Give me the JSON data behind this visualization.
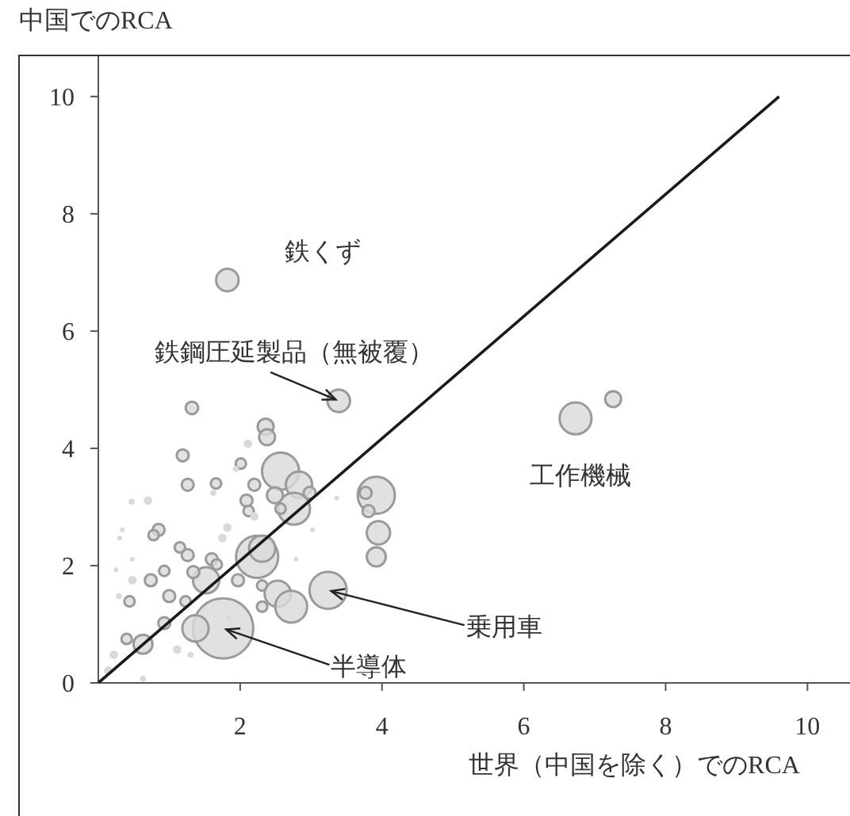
{
  "chart_data": {
    "type": "bubble",
    "xlabel": "世界（中国を除く）でのRCA",
    "ylabel": "中国でのRCA",
    "xlim": [
      0,
      10.6
    ],
    "ylim": [
      0,
      10.7
    ],
    "xticks": [
      2,
      4,
      6,
      8,
      10
    ],
    "yticks": [
      0,
      2,
      4,
      6,
      8,
      10
    ],
    "series": [
      {
        "color": "#d9d9d9",
        "marker": "circle",
        "x": [
          1.76,
          3.24,
          3.39,
          1.82,
          6.73,
          7.26,
          1.32,
          2.36,
          2.38,
          2.11,
          2.01,
          1.94,
          1.19,
          1.26,
          1.66,
          1.62,
          2.2,
          2.57,
          2.83,
          2.76,
          2.98,
          2.49,
          2.09,
          2.12,
          2.2,
          2.57,
          3.92,
          3.77,
          3.81,
          3.95,
          3.92,
          3.36,
          2.24,
          2.31,
          1.97,
          2.31,
          2.53,
          2.72,
          2.31,
          1.52,
          1.37,
          1.6,
          1.34,
          1.26,
          1.15,
          0.85,
          0.78,
          0.93,
          0.74,
          0.48,
          0.44,
          0.29,
          0.7,
          0.47,
          1.0,
          1.23,
          1.67,
          1.75,
          1.82,
          0.63,
          0.93,
          0.4,
          0.22,
          0.14,
          0.63,
          1.11,
          1.3,
          0.34,
          0.3,
          0.48,
          0.25,
          1.84,
          3.02,
          2.79
        ],
        "values": [
          0.93,
          1.58,
          4.81,
          6.87,
          4.51,
          4.84,
          4.69,
          4.37,
          4.19,
          4.08,
          3.74,
          3.65,
          3.88,
          3.38,
          3.4,
          3.24,
          3.38,
          3.61,
          3.38,
          2.97,
          3.24,
          3.2,
          3.11,
          2.93,
          2.84,
          2.97,
          3.2,
          3.24,
          2.93,
          2.56,
          2.15,
          3.15,
          2.15,
          2.29,
          1.75,
          1.66,
          1.52,
          1.3,
          1.3,
          1.75,
          0.93,
          2.11,
          1.89,
          2.18,
          2.31,
          2.61,
          2.52,
          1.91,
          1.75,
          1.75,
          1.39,
          1.48,
          3.11,
          3.09,
          1.48,
          1.39,
          2.02,
          2.47,
          2.65,
          0.66,
          1.02,
          0.75,
          0.48,
          0.21,
          0.07,
          0.57,
          0.48,
          2.61,
          2.47,
          2.11,
          1.93,
          1.11,
          2.61,
          2.11
        ],
        "sizes": [
          1,
          0.38,
          0.14,
          0.14,
          0.28,
          0.07,
          0.044,
          0.07,
          0.07,
          0.02,
          0.03,
          0.01,
          0.04,
          0.04,
          0.03,
          0.01,
          0.04,
          0.38,
          0.19,
          0.28,
          0.04,
          0.07,
          0.04,
          0.03,
          0.02,
          0.03,
          0.38,
          0.04,
          0.04,
          0.15,
          0.1,
          0.004,
          0.49,
          0.19,
          0.04,
          0.03,
          0.19,
          0.28,
          0.03,
          0.19,
          0.19,
          0.04,
          0.04,
          0.04,
          0.03,
          0.04,
          0.03,
          0.03,
          0.04,
          0.02,
          0.03,
          0.01,
          0.02,
          0.01,
          0.04,
          0.03,
          0.03,
          0.02,
          0.02,
          0.1,
          0.04,
          0.03,
          0.02,
          0.02,
          0.01,
          0.02,
          0.01,
          0.003,
          0.003,
          0.003,
          0.003,
          0.005,
          0.005,
          0.005
        ]
      },
      {
        "type": "line",
        "color": "#1a1a1a",
        "x": [
          0,
          9.6
        ],
        "values": [
          0,
          10
        ]
      }
    ],
    "annotations": [
      {
        "text": "鉄くず",
        "x": 1.82,
        "y": 6.87
      },
      {
        "text": "鉄鋼圧延製品（無被覆）",
        "x": 3.39,
        "y": 4.81
      },
      {
        "text": "工作機械",
        "x": 6.73,
        "y": 4.51
      },
      {
        "text": "乗用車",
        "x": 3.24,
        "y": 1.58
      },
      {
        "text": "半導体",
        "x": 1.76,
        "y": 0.93
      }
    ]
  }
}
